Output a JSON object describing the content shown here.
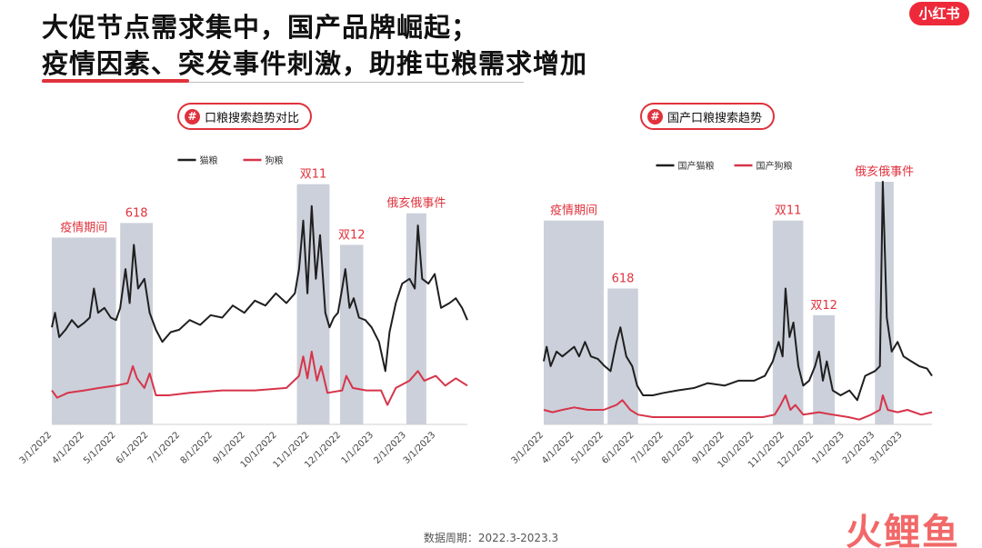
{
  "title": {
    "line1": "大促节点需求集中，国产品牌崛起；",
    "line2": "疫情因素、突发事件刺激，助推屯粮需求增加"
  },
  "brand_logo": "小红书",
  "footer": "数据周期：2022.3-2023.3",
  "watermark": "火鲤鱼",
  "colors": {
    "cat": "#1f1f1f",
    "dog": "#d7344a",
    "band": "#cbd0da",
    "accent": "#e0323c"
  },
  "chart_data": [
    {
      "type": "line",
      "title": "口粮搜索趋势对比",
      "x_start": "2022-03-01",
      "x_end": "2023-03-31",
      "xticks": [
        "3/1/2022",
        "4/1/2022",
        "5/1/2022",
        "6/1/2022",
        "7/1/2022",
        "8/1/2022",
        "9/1/2022",
        "10/1/2022",
        "11/1/2022",
        "12/1/2022",
        "1/1/2023",
        "2/1/2023",
        "3/1/2023"
      ],
      "ylim": [
        0,
        100
      ],
      "legend": [
        "猫粮",
        "狗粮"
      ],
      "legend_position": "top-center",
      "bands": [
        {
          "label": "疫情期间",
          "from": "2022-03-01",
          "to": "2022-05-01",
          "top": 77
        },
        {
          "label": "618",
          "from": "2022-05-05",
          "to": "2022-06-05",
          "top": 83
        },
        {
          "label": "双11",
          "from": "2022-10-20",
          "to": "2022-11-20",
          "top": 99
        },
        {
          "label": "双12",
          "from": "2022-11-30",
          "to": "2022-12-22",
          "top": 74
        },
        {
          "label": "俄亥俄事件",
          "from": "2023-02-01",
          "to": "2023-02-20",
          "top": 87
        }
      ],
      "series": [
        {
          "name": "猫粮",
          "points": [
            [
              "2022-03-01",
              40
            ],
            [
              "2022-03-04",
              46
            ],
            [
              "2022-03-08",
              36
            ],
            [
              "2022-03-14",
              39
            ],
            [
              "2022-03-20",
              43
            ],
            [
              "2022-03-26",
              40
            ],
            [
              "2022-04-01",
              42
            ],
            [
              "2022-04-06",
              44
            ],
            [
              "2022-04-10",
              56
            ],
            [
              "2022-04-14",
              46
            ],
            [
              "2022-04-20",
              48
            ],
            [
              "2022-04-26",
              44
            ],
            [
              "2022-05-01",
              43
            ],
            [
              "2022-05-05",
              48
            ],
            [
              "2022-05-10",
              64
            ],
            [
              "2022-05-14",
              50
            ],
            [
              "2022-05-18",
              74
            ],
            [
              "2022-05-22",
              56
            ],
            [
              "2022-05-28",
              60
            ],
            [
              "2022-06-02",
              46
            ],
            [
              "2022-06-08",
              39
            ],
            [
              "2022-06-14",
              34
            ],
            [
              "2022-06-22",
              38
            ],
            [
              "2022-06-30",
              39
            ],
            [
              "2022-07-10",
              43
            ],
            [
              "2022-07-20",
              41
            ],
            [
              "2022-07-30",
              45
            ],
            [
              "2022-08-10",
              44
            ],
            [
              "2022-08-20",
              49
            ],
            [
              "2022-08-31",
              46
            ],
            [
              "2022-09-10",
              51
            ],
            [
              "2022-09-20",
              49
            ],
            [
              "2022-09-30",
              54
            ],
            [
              "2022-10-10",
              50
            ],
            [
              "2022-10-18",
              54
            ],
            [
              "2022-10-22",
              64
            ],
            [
              "2022-10-26",
              84
            ],
            [
              "2022-10-30",
              54
            ],
            [
              "2022-11-03",
              90
            ],
            [
              "2022-11-07",
              60
            ],
            [
              "2022-11-11",
              78
            ],
            [
              "2022-11-16",
              46
            ],
            [
              "2022-11-20",
              40
            ],
            [
              "2022-11-24",
              44
            ],
            [
              "2022-11-28",
              46
            ],
            [
              "2022-12-02",
              56
            ],
            [
              "2022-12-05",
              64
            ],
            [
              "2022-12-09",
              48
            ],
            [
              "2022-12-13",
              52
            ],
            [
              "2022-12-18",
              44
            ],
            [
              "2022-12-24",
              43
            ],
            [
              "2022-12-30",
              40
            ],
            [
              "2023-01-06",
              34
            ],
            [
              "2023-01-12",
              22
            ],
            [
              "2023-01-16",
              38
            ],
            [
              "2023-01-22",
              50
            ],
            [
              "2023-01-28",
              58
            ],
            [
              "2023-02-04",
              60
            ],
            [
              "2023-02-09",
              56
            ],
            [
              "2023-02-12",
              82
            ],
            [
              "2023-02-16",
              60
            ],
            [
              "2023-02-22",
              58
            ],
            [
              "2023-02-28",
              62
            ],
            [
              "2023-03-06",
              48
            ],
            [
              "2023-03-14",
              50
            ],
            [
              "2023-03-20",
              52
            ],
            [
              "2023-03-26",
              48
            ],
            [
              "2023-03-31",
              43
            ]
          ]
        },
        {
          "name": "狗粮",
          "points": [
            [
              "2022-03-01",
              14
            ],
            [
              "2022-03-06",
              11
            ],
            [
              "2022-03-16",
              13
            ],
            [
              "2022-04-01",
              14
            ],
            [
              "2022-04-15",
              15
            ],
            [
              "2022-05-01",
              16
            ],
            [
              "2022-05-12",
              17
            ],
            [
              "2022-05-17",
              24
            ],
            [
              "2022-05-21",
              19
            ],
            [
              "2022-05-28",
              15
            ],
            [
              "2022-06-02",
              21
            ],
            [
              "2022-06-08",
              12
            ],
            [
              "2022-06-20",
              12
            ],
            [
              "2022-07-10",
              13
            ],
            [
              "2022-08-10",
              14
            ],
            [
              "2022-09-10",
              14
            ],
            [
              "2022-10-10",
              15
            ],
            [
              "2022-10-22",
              20
            ],
            [
              "2022-10-26",
              28
            ],
            [
              "2022-10-30",
              19
            ],
            [
              "2022-11-03",
              30
            ],
            [
              "2022-11-08",
              18
            ],
            [
              "2022-11-12",
              24
            ],
            [
              "2022-11-18",
              13
            ],
            [
              "2022-12-02",
              14
            ],
            [
              "2022-12-06",
              20
            ],
            [
              "2022-12-12",
              15
            ],
            [
              "2022-12-25",
              14
            ],
            [
              "2023-01-08",
              14
            ],
            [
              "2023-01-14",
              8
            ],
            [
              "2023-01-22",
              15
            ],
            [
              "2023-02-04",
              18
            ],
            [
              "2023-02-12",
              22
            ],
            [
              "2023-02-18",
              18
            ],
            [
              "2023-03-01",
              20
            ],
            [
              "2023-03-10",
              16
            ],
            [
              "2023-03-20",
              19
            ],
            [
              "2023-03-31",
              16
            ]
          ]
        }
      ]
    },
    {
      "type": "line",
      "title": "国产口粮搜索趋势",
      "x_start": "2022-03-01",
      "x_end": "2023-03-31",
      "xticks": [
        "3/1/2022",
        "4/1/2022",
        "5/1/2022",
        "6/1/2022",
        "7/1/2022",
        "8/1/2022",
        "9/1/2022",
        "10/1/2022",
        "11/1/2022",
        "12/1/2022",
        "1/1/2023",
        "2/1/2023",
        "3/1/2023"
      ],
      "ylim": [
        0,
        100
      ],
      "legend": [
        "国产猫粮",
        "国产狗粮"
      ],
      "legend_position": "top-center",
      "bands": [
        {
          "label": "疫情期间",
          "from": "2022-03-01",
          "to": "2022-05-01",
          "top": 84
        },
        {
          "label": "618",
          "from": "2022-05-05",
          "to": "2022-06-05",
          "top": 56
        },
        {
          "label": "双11",
          "from": "2022-10-20",
          "to": "2022-11-20",
          "top": 84
        },
        {
          "label": "双12",
          "from": "2022-11-30",
          "to": "2022-12-22",
          "top": 45
        },
        {
          "label": "俄亥俄事件",
          "from": "2023-02-01",
          "to": "2023-02-20",
          "top": 100
        }
      ],
      "series": [
        {
          "name": "国产猫粮",
          "points": [
            [
              "2022-03-01",
              26
            ],
            [
              "2022-03-04",
              32
            ],
            [
              "2022-03-08",
              24
            ],
            [
              "2022-03-14",
              30
            ],
            [
              "2022-03-20",
              28
            ],
            [
              "2022-03-26",
              30
            ],
            [
              "2022-04-01",
              32
            ],
            [
              "2022-04-06",
              28
            ],
            [
              "2022-04-12",
              34
            ],
            [
              "2022-04-18",
              28
            ],
            [
              "2022-04-25",
              27
            ],
            [
              "2022-05-02",
              24
            ],
            [
              "2022-05-08",
              22
            ],
            [
              "2022-05-14",
              34
            ],
            [
              "2022-05-18",
              40
            ],
            [
              "2022-05-24",
              28
            ],
            [
              "2022-05-30",
              24
            ],
            [
              "2022-06-04",
              16
            ],
            [
              "2022-06-10",
              12
            ],
            [
              "2022-06-20",
              12
            ],
            [
              "2022-07-01",
              13
            ],
            [
              "2022-07-15",
              14
            ],
            [
              "2022-08-01",
              15
            ],
            [
              "2022-08-15",
              17
            ],
            [
              "2022-09-01",
              16
            ],
            [
              "2022-09-15",
              18
            ],
            [
              "2022-10-01",
              18
            ],
            [
              "2022-10-12",
              20
            ],
            [
              "2022-10-20",
              26
            ],
            [
              "2022-10-26",
              34
            ],
            [
              "2022-10-30",
              28
            ],
            [
              "2022-11-02",
              56
            ],
            [
              "2022-11-06",
              36
            ],
            [
              "2022-11-10",
              42
            ],
            [
              "2022-11-15",
              24
            ],
            [
              "2022-11-20",
              16
            ],
            [
              "2022-11-26",
              18
            ],
            [
              "2022-12-02",
              24
            ],
            [
              "2022-12-06",
              30
            ],
            [
              "2022-12-10",
              18
            ],
            [
              "2022-12-14",
              26
            ],
            [
              "2022-12-20",
              14
            ],
            [
              "2022-12-28",
              12
            ],
            [
              "2023-01-06",
              14
            ],
            [
              "2023-01-14",
              10
            ],
            [
              "2023-01-22",
              20
            ],
            [
              "2023-02-01",
              22
            ],
            [
              "2023-02-06",
              24
            ],
            [
              "2023-02-09",
              100
            ],
            [
              "2023-02-13",
              44
            ],
            [
              "2023-02-18",
              30
            ],
            [
              "2023-02-24",
              34
            ],
            [
              "2023-03-02",
              28
            ],
            [
              "2023-03-10",
              26
            ],
            [
              "2023-03-18",
              24
            ],
            [
              "2023-03-26",
              23
            ],
            [
              "2023-03-31",
              20
            ]
          ]
        },
        {
          "name": "国产狗粮",
          "points": [
            [
              "2022-03-01",
              6
            ],
            [
              "2022-03-10",
              5
            ],
            [
              "2022-03-20",
              6
            ],
            [
              "2022-04-01",
              7
            ],
            [
              "2022-04-15",
              6
            ],
            [
              "2022-05-01",
              6
            ],
            [
              "2022-05-14",
              8
            ],
            [
              "2022-05-20",
              10
            ],
            [
              "2022-05-28",
              6
            ],
            [
              "2022-06-05",
              4
            ],
            [
              "2022-06-20",
              3
            ],
            [
              "2022-07-10",
              3
            ],
            [
              "2022-08-10",
              3
            ],
            [
              "2022-09-10",
              3
            ],
            [
              "2022-10-10",
              3
            ],
            [
              "2022-10-22",
              4
            ],
            [
              "2022-10-28",
              8
            ],
            [
              "2022-11-02",
              12
            ],
            [
              "2022-11-07",
              6
            ],
            [
              "2022-11-12",
              8
            ],
            [
              "2022-11-20",
              4
            ],
            [
              "2022-12-06",
              5
            ],
            [
              "2022-12-20",
              4
            ],
            [
              "2023-01-05",
              3
            ],
            [
              "2023-01-16",
              2
            ],
            [
              "2023-01-28",
              4
            ],
            [
              "2023-02-06",
              6
            ],
            [
              "2023-02-09",
              12
            ],
            [
              "2023-02-14",
              6
            ],
            [
              "2023-02-24",
              5
            ],
            [
              "2023-03-06",
              6
            ],
            [
              "2023-03-20",
              4
            ],
            [
              "2023-03-31",
              5
            ]
          ]
        }
      ]
    }
  ]
}
